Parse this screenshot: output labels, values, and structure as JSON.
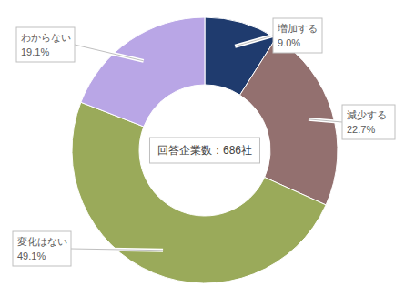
{
  "chart_data": {
    "type": "pie",
    "categories": [
      "増加する",
      "減少する",
      "変化はない",
      "わからない"
    ],
    "values": [
      9.0,
      22.7,
      49.1,
      19.1
    ],
    "value_labels": [
      "9.0%",
      "22.7%",
      "49.1%",
      "19.1%"
    ],
    "colors": [
      "#1f3b6e",
      "#93706f",
      "#9aaa5a",
      "#b9a6e6"
    ],
    "data_labels": true,
    "annotations": [
      "回答企業数：686社"
    ]
  }
}
